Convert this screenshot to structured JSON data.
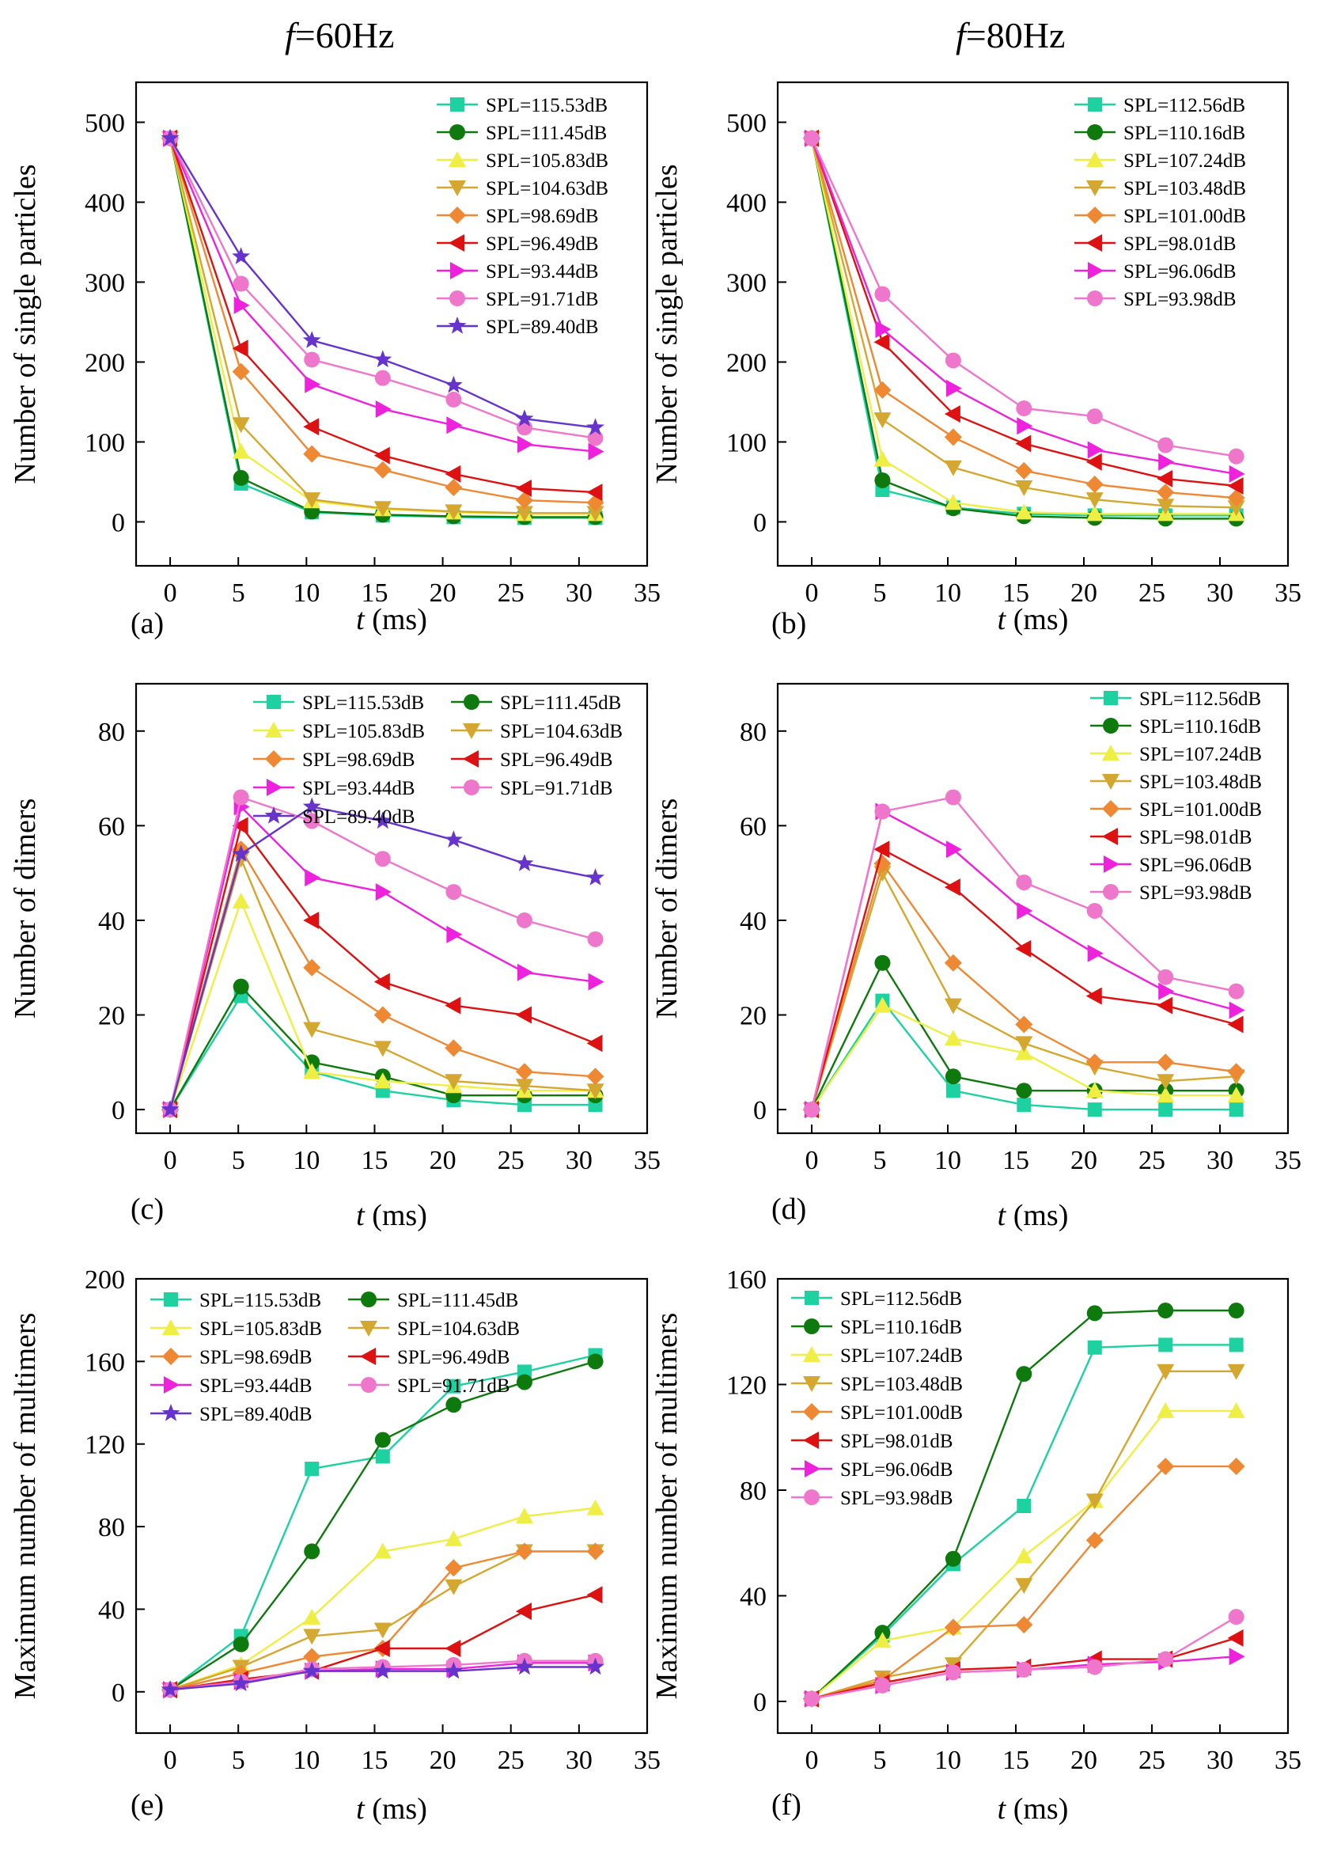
{
  "headings": {
    "left": {
      "var": "f",
      "value": "=60Hz"
    },
    "right": {
      "var": "f",
      "value": "=80Hz"
    }
  },
  "colors": {
    "teal": "#1dd1a1",
    "darkgreen": "#0e7a0e",
    "yellow": "#eeee44",
    "gold": "#d4a830",
    "orange": "#ee8833",
    "red": "#dd1111",
    "magenta": "#ee22dd",
    "pink": "#ee77cc",
    "purple": "#6633cc"
  },
  "chart_data": [
    {
      "panel": "(a)",
      "type": "line",
      "xlabel": "t (ms)",
      "ylabel": "Number of single particles",
      "xlim": [
        -2.5,
        35
      ],
      "ylim": [
        -55,
        550
      ],
      "xticks": [
        0,
        5,
        10,
        15,
        20,
        25,
        30,
        35
      ],
      "yticks": [
        0,
        100,
        200,
        300,
        400,
        500
      ],
      "legend": "top-right, 1 column",
      "x": [
        0,
        5.2,
        10.4,
        15.6,
        20.8,
        26,
        31.2
      ],
      "series": [
        {
          "name": "SPL=115.53dB",
          "marker": "square",
          "color": "teal",
          "values": [
            480,
            48,
            12,
            8,
            6,
            5,
            5
          ]
        },
        {
          "name": "SPL=111.45dB",
          "marker": "circle",
          "color": "darkgreen",
          "values": [
            480,
            55,
            13,
            9,
            7,
            6,
            6
          ]
        },
        {
          "name": "SPL=105.83dB",
          "marker": "triangle-up",
          "color": "yellow",
          "values": [
            480,
            88,
            26,
            16,
            12,
            10,
            10
          ]
        },
        {
          "name": "SPL=104.63dB",
          "marker": "triangle-down",
          "color": "gold",
          "values": [
            480,
            122,
            28,
            17,
            13,
            11,
            11
          ]
        },
        {
          "name": "SPL=98.69dB",
          "marker": "diamond",
          "color": "orange",
          "values": [
            480,
            188,
            85,
            65,
            43,
            27,
            24
          ]
        },
        {
          "name": "SPL=96.49dB",
          "marker": "triangle-left",
          "color": "red",
          "values": [
            480,
            217,
            119,
            83,
            60,
            42,
            37
          ]
        },
        {
          "name": "SPL=93.44dB",
          "marker": "triangle-right",
          "color": "magenta",
          "values": [
            480,
            271,
            172,
            141,
            121,
            97,
            88
          ]
        },
        {
          "name": "SPL=91.71dB",
          "marker": "circle",
          "color": "pink",
          "values": [
            480,
            298,
            203,
            180,
            153,
            118,
            105
          ]
        },
        {
          "name": "SPL=89.40dB",
          "marker": "star",
          "color": "purple",
          "values": [
            480,
            332,
            227,
            203,
            171,
            129,
            118
          ]
        }
      ]
    },
    {
      "panel": "(b)",
      "type": "line",
      "xlabel": "t (ms)",
      "ylabel": "Number of single particles",
      "xlim": [
        -2.5,
        35
      ],
      "ylim": [
        -55,
        550
      ],
      "xticks": [
        0,
        5,
        10,
        15,
        20,
        25,
        30,
        35
      ],
      "yticks": [
        0,
        100,
        200,
        300,
        400,
        500
      ],
      "legend": "top-right, 1 column",
      "x": [
        0,
        5.2,
        10.4,
        15.6,
        20.8,
        26,
        31.2
      ],
      "series": [
        {
          "name": "SPL=112.56dB",
          "marker": "square",
          "color": "teal",
          "values": [
            480,
            40,
            18,
            10,
            8,
            8,
            8
          ]
        },
        {
          "name": "SPL=110.16dB",
          "marker": "circle",
          "color": "darkgreen",
          "values": [
            480,
            52,
            17,
            7,
            5,
            4,
            4
          ]
        },
        {
          "name": "SPL=107.24dB",
          "marker": "triangle-up",
          "color": "yellow",
          "values": [
            480,
            78,
            24,
            12,
            10,
            10,
            10
          ]
        },
        {
          "name": "SPL=103.48dB",
          "marker": "triangle-down",
          "color": "gold",
          "values": [
            480,
            128,
            68,
            43,
            28,
            20,
            18
          ]
        },
        {
          "name": "SPL=101.00dB",
          "marker": "diamond",
          "color": "orange",
          "values": [
            480,
            165,
            106,
            64,
            47,
            37,
            30
          ]
        },
        {
          "name": "SPL=98.01dB",
          "marker": "triangle-left",
          "color": "red",
          "values": [
            480,
            225,
            135,
            98,
            75,
            54,
            45
          ]
        },
        {
          "name": "SPL=96.06dB",
          "marker": "triangle-right",
          "color": "magenta",
          "values": [
            480,
            241,
            167,
            120,
            90,
            75,
            60
          ]
        },
        {
          "name": "SPL=93.98dB",
          "marker": "circle",
          "color": "pink",
          "values": [
            480,
            285,
            202,
            142,
            132,
            96,
            82
          ]
        }
      ]
    },
    {
      "panel": "(c)",
      "type": "line",
      "xlabel": "t (ms)",
      "ylabel": "Number of dimers",
      "xlim": [
        -2.5,
        35
      ],
      "ylim": [
        -5,
        90
      ],
      "xticks": [
        0,
        5,
        10,
        15,
        20,
        25,
        30,
        35
      ],
      "yticks": [
        0,
        20,
        40,
        60,
        80
      ],
      "legend": "top, 2 columns",
      "x": [
        0,
        5.2,
        10.4,
        15.6,
        20.8,
        26,
        31.2
      ],
      "series": [
        {
          "name": "SPL=115.53dB",
          "marker": "square",
          "color": "teal",
          "values": [
            0,
            24,
            8,
            4,
            2,
            1,
            1
          ]
        },
        {
          "name": "SPL=111.45dB",
          "marker": "circle",
          "color": "darkgreen",
          "values": [
            0,
            26,
            10,
            7,
            3,
            3,
            3
          ]
        },
        {
          "name": "SPL=105.83dB",
          "marker": "triangle-up",
          "color": "yellow",
          "values": [
            0,
            44,
            8,
            6,
            5,
            4,
            4
          ]
        },
        {
          "name": "SPL=104.63dB",
          "marker": "triangle-down",
          "color": "gold",
          "values": [
            0,
            53,
            17,
            13,
            6,
            5,
            4
          ]
        },
        {
          "name": "SPL=98.69dB",
          "marker": "diamond",
          "color": "orange",
          "values": [
            0,
            55,
            30,
            20,
            13,
            8,
            7
          ]
        },
        {
          "name": "SPL=96.49dB",
          "marker": "triangle-left",
          "color": "red",
          "values": [
            0,
            60,
            40,
            27,
            22,
            20,
            14
          ]
        },
        {
          "name": "SPL=93.44dB",
          "marker": "triangle-right",
          "color": "magenta",
          "values": [
            0,
            64,
            49,
            46,
            37,
            29,
            27
          ]
        },
        {
          "name": "SPL=91.71dB",
          "marker": "circle",
          "color": "pink",
          "values": [
            0,
            66,
            61,
            53,
            46,
            40,
            36
          ]
        },
        {
          "name": "SPL=89.40dB",
          "marker": "star",
          "color": "purple",
          "values": [
            0,
            54,
            64,
            61,
            57,
            52,
            49
          ]
        }
      ]
    },
    {
      "panel": "(d)",
      "type": "line",
      "xlabel": "t (ms)",
      "ylabel": "Number of dimers",
      "xlim": [
        -2.5,
        35
      ],
      "ylim": [
        -5,
        90
      ],
      "xticks": [
        0,
        5,
        10,
        15,
        20,
        25,
        30,
        35
      ],
      "yticks": [
        0,
        20,
        40,
        60,
        80
      ],
      "legend": "top-right, 1 column",
      "x": [
        0,
        5.2,
        10.4,
        15.6,
        20.8,
        26,
        31.2
      ],
      "series": [
        {
          "name": "SPL=112.56dB",
          "marker": "square",
          "color": "teal",
          "values": [
            0,
            23,
            4,
            1,
            0,
            0,
            0
          ]
        },
        {
          "name": "SPL=110.16dB",
          "marker": "circle",
          "color": "darkgreen",
          "values": [
            0,
            31,
            7,
            4,
            4,
            4,
            4
          ]
        },
        {
          "name": "SPL=107.24dB",
          "marker": "triangle-up",
          "color": "yellow",
          "values": [
            0,
            22,
            15,
            12,
            4,
            3,
            3
          ]
        },
        {
          "name": "SPL=103.48dB",
          "marker": "triangle-down",
          "color": "gold",
          "values": [
            0,
            50,
            22,
            14,
            9,
            6,
            7
          ]
        },
        {
          "name": "SPL=101.00dB",
          "marker": "diamond",
          "color": "orange",
          "values": [
            0,
            52,
            31,
            18,
            10,
            10,
            8
          ]
        },
        {
          "name": "SPL=98.01dB",
          "marker": "triangle-left",
          "color": "red",
          "values": [
            0,
            55,
            47,
            34,
            24,
            22,
            18
          ]
        },
        {
          "name": "SPL=96.06dB",
          "marker": "triangle-right",
          "color": "magenta",
          "values": [
            0,
            63,
            55,
            42,
            33,
            25,
            21
          ]
        },
        {
          "name": "SPL=93.98dB",
          "marker": "circle",
          "color": "pink",
          "values": [
            0,
            63,
            66,
            48,
            42,
            28,
            25
          ]
        }
      ]
    },
    {
      "panel": "(e)",
      "type": "line",
      "xlabel": "t (ms)",
      "ylabel": "Maximum number of multimers",
      "xlim": [
        -2.5,
        35
      ],
      "ylim": [
        -20,
        200
      ],
      "xticks": [
        0,
        5,
        10,
        15,
        20,
        25,
        30,
        35
      ],
      "yticks": [
        0,
        40,
        80,
        120,
        160,
        200
      ],
      "legend": "top-left, 2 columns",
      "x": [
        0,
        5.2,
        10.4,
        15.6,
        20.8,
        26,
        31.2
      ],
      "series": [
        {
          "name": "SPL=115.53dB",
          "marker": "square",
          "color": "teal",
          "values": [
            1,
            27,
            108,
            114,
            148,
            155,
            163
          ]
        },
        {
          "name": "SPL=111.45dB",
          "marker": "circle",
          "color": "darkgreen",
          "values": [
            1,
            23,
            68,
            122,
            139,
            150,
            160
          ]
        },
        {
          "name": "SPL=105.83dB",
          "marker": "triangle-up",
          "color": "yellow",
          "values": [
            1,
            13,
            36,
            68,
            74,
            85,
            89
          ]
        },
        {
          "name": "SPL=104.63dB",
          "marker": "triangle-down",
          "color": "gold",
          "values": [
            1,
            12,
            27,
            30,
            51,
            68,
            68
          ]
        },
        {
          "name": "SPL=98.69dB",
          "marker": "diamond",
          "color": "orange",
          "values": [
            1,
            9,
            17,
            21,
            60,
            68,
            68
          ]
        },
        {
          "name": "SPL=96.49dB",
          "marker": "triangle-left",
          "color": "red",
          "values": [
            1,
            6,
            10,
            21,
            21,
            39,
            47
          ]
        },
        {
          "name": "SPL=93.44dB",
          "marker": "triangle-right",
          "color": "magenta",
          "values": [
            1,
            5,
            10,
            11,
            11,
            14,
            14
          ]
        },
        {
          "name": "SPL=91.71dB",
          "marker": "circle",
          "color": "pink",
          "values": [
            1,
            5,
            11,
            12,
            13,
            15,
            15
          ]
        },
        {
          "name": "SPL=89.40dB",
          "marker": "star",
          "color": "purple",
          "values": [
            1,
            4,
            10,
            10,
            10,
            12,
            12
          ]
        }
      ]
    },
    {
      "panel": "(f)",
      "type": "line",
      "xlabel": "t (ms)",
      "ylabel": "Maximum number of multimers",
      "xlim": [
        -2.5,
        35
      ],
      "ylim": [
        -12,
        160
      ],
      "xticks": [
        0,
        5,
        10,
        15,
        20,
        25,
        30,
        35
      ],
      "yticks": [
        0,
        40,
        80,
        120,
        160
      ],
      "legend": "top-left, 1 column",
      "x": [
        0,
        5.2,
        10.4,
        15.6,
        20.8,
        26,
        31.2
      ],
      "series": [
        {
          "name": "SPL=112.56dB",
          "marker": "square",
          "color": "teal",
          "values": [
            1,
            25,
            52,
            74,
            134,
            135,
            135
          ]
        },
        {
          "name": "SPL=110.16dB",
          "marker": "circle",
          "color": "darkgreen",
          "values": [
            1,
            26,
            54,
            124,
            147,
            148,
            148
          ]
        },
        {
          "name": "SPL=107.24dB",
          "marker": "triangle-up",
          "color": "yellow",
          "values": [
            1,
            23,
            28,
            55,
            76,
            110,
            110
          ]
        },
        {
          "name": "SPL=103.48dB",
          "marker": "triangle-down",
          "color": "gold",
          "values": [
            1,
            9,
            14,
            44,
            76,
            125,
            125
          ]
        },
        {
          "name": "SPL=101.00dB",
          "marker": "diamond",
          "color": "orange",
          "values": [
            1,
            8,
            28,
            29,
            61,
            89,
            89
          ]
        },
        {
          "name": "SPL=98.01dB",
          "marker": "triangle-left",
          "color": "red",
          "values": [
            1,
            7,
            12,
            13,
            16,
            16,
            24
          ]
        },
        {
          "name": "SPL=96.06dB",
          "marker": "triangle-right",
          "color": "magenta",
          "values": [
            1,
            6,
            11,
            12,
            14,
            15,
            17
          ]
        },
        {
          "name": "SPL=93.98dB",
          "marker": "circle",
          "color": "pink",
          "values": [
            1,
            6,
            11,
            12,
            13,
            16,
            32
          ]
        }
      ]
    }
  ]
}
